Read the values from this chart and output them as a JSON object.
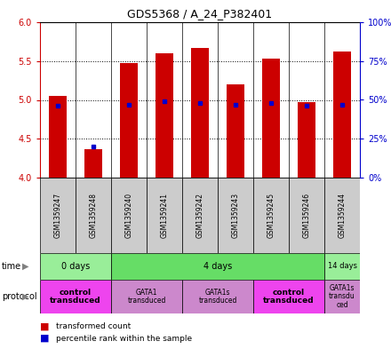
{
  "title": "GDS5368 / A_24_P382401",
  "samples": [
    "GSM1359247",
    "GSM1359248",
    "GSM1359240",
    "GSM1359241",
    "GSM1359242",
    "GSM1359243",
    "GSM1359245",
    "GSM1359246",
    "GSM1359244"
  ],
  "transformed_counts": [
    5.05,
    4.37,
    5.47,
    5.6,
    5.67,
    5.2,
    5.53,
    4.97,
    5.62
  ],
  "percentile_ranks": [
    46,
    20,
    47,
    49,
    48,
    47,
    48,
    46,
    47
  ],
  "ylim_left": [
    4.0,
    6.0
  ],
  "ylim_right": [
    0,
    100
  ],
  "left_ticks": [
    4.0,
    4.5,
    5.0,
    5.5,
    6.0
  ],
  "right_ticks": [
    0,
    25,
    50,
    75,
    100
  ],
  "right_tick_labels": [
    "0%",
    "25%",
    "50%",
    "75%",
    "100%"
  ],
  "bar_color": "#cc0000",
  "dot_color": "#0000cc",
  "bar_base": 4.0,
  "time_groups": [
    {
      "label": "0 days",
      "start": 0,
      "end": 2,
      "color": "#99ee99"
    },
    {
      "label": "4 days",
      "start": 2,
      "end": 8,
      "color": "#66dd66"
    },
    {
      "label": "14 days",
      "start": 8,
      "end": 9,
      "color": "#99ee99"
    }
  ],
  "protocol_groups": [
    {
      "label": "control\ntransduced",
      "start": 0,
      "end": 2,
      "color": "#ee44ee",
      "bold": true
    },
    {
      "label": "GATA1\ntransduced",
      "start": 2,
      "end": 4,
      "color": "#cc88cc",
      "bold": false
    },
    {
      "label": "GATA1s\ntransduced",
      "start": 4,
      "end": 6,
      "color": "#cc88cc",
      "bold": false
    },
    {
      "label": "control\ntransduced",
      "start": 6,
      "end": 8,
      "color": "#ee44ee",
      "bold": true
    },
    {
      "label": "GATA1s\ntransdu\nced",
      "start": 8,
      "end": 9,
      "color": "#cc88cc",
      "bold": false
    }
  ],
  "bar_width": 0.5,
  "label_fontsize": 5.5,
  "tick_fontsize": 7,
  "title_fontsize": 9
}
